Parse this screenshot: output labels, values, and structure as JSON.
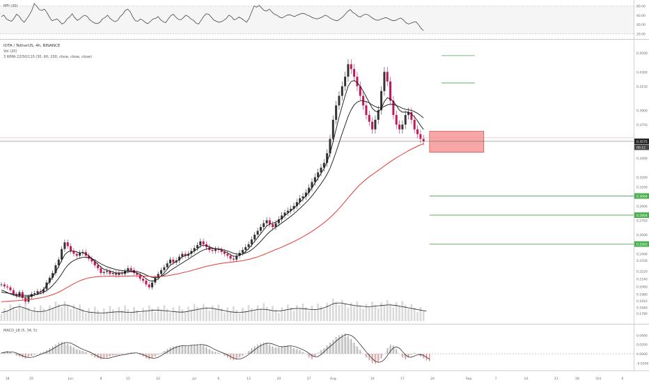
{
  "symbol_line": "IOTA / TetherUS, 4h, BINANCE",
  "vol_line": "Vol (20)",
  "wma_line": "3 WMA 22/50/110 (30, 60, 200, close, close, close)",
  "mfi_line": "MFI (30)",
  "macd_line": "MACD_LB (5, 34, 5)",
  "colors": {
    "up": "#333333",
    "down": "#c2185b",
    "wma_fast": "#111111",
    "wma_slow": "#e53935",
    "zone_fill": "#f48a8a",
    "zone_stroke": "#d32f2f",
    "level_line": "#43a047",
    "price_tag": "#222222",
    "green_tag": "#4caf50"
  },
  "current_price_tag": "0.3575",
  "countdown_tag": "00:12",
  "chart_data": [
    {
      "type": "line",
      "panel": "mfi",
      "y_ticks": [
        "80.00",
        "60.00",
        "40.00",
        "20.00"
      ],
      "ylim": [
        15,
        88
      ],
      "values": [
        57,
        60,
        52,
        49,
        47,
        53,
        62,
        58,
        50,
        45,
        52,
        60,
        70,
        85,
        79,
        72,
        70,
        73,
        66,
        56,
        48,
        50,
        52,
        47,
        41,
        44,
        52,
        56,
        63,
        55,
        49,
        52,
        57,
        60,
        57,
        50,
        46,
        43,
        42,
        45,
        52,
        55,
        60,
        53,
        49,
        46,
        49,
        57,
        62,
        70,
        73,
        67,
        56,
        48,
        47,
        52,
        49,
        44,
        42,
        47,
        52,
        53,
        57,
        50,
        46,
        44,
        52,
        59,
        62,
        56,
        51,
        50,
        55,
        60,
        57,
        52,
        49,
        43,
        41,
        49,
        57,
        63,
        62,
        56,
        50,
        47,
        45,
        46,
        49,
        53,
        60,
        57,
        50,
        52,
        56,
        53,
        49,
        45,
        53,
        67,
        80,
        77,
        81,
        75,
        70,
        69,
        73,
        67,
        62,
        60,
        56,
        54,
        57,
        60,
        61,
        59,
        57,
        60,
        62,
        64,
        63,
        60,
        58,
        55,
        53,
        52,
        54,
        56,
        60,
        58,
        54,
        51,
        49,
        48,
        52,
        56,
        62,
        68,
        72,
        66,
        63,
        58,
        56,
        60,
        62,
        61,
        57,
        53,
        50,
        49,
        51,
        53,
        55,
        53,
        50,
        48,
        49,
        52,
        54,
        50,
        44,
        41,
        43,
        45,
        46,
        40,
        32,
        27
      ]
    },
    {
      "type": "candlestick",
      "panel": "price",
      "y_ticks": [
        "0.4500",
        "0.4300",
        "0.4150",
        "0.3900",
        "0.3750",
        "0.3575",
        "0.3400",
        "0.3200",
        "0.3100",
        "0.2900",
        "0.2750",
        "0.2600",
        "0.2500",
        "0.2400",
        "0.2330",
        "0.2220",
        "0.2140",
        "0.2060",
        "0.1980",
        "0.1910",
        "0.1840",
        "0.1780"
      ],
      "level_tags": [
        "0.3004",
        "0.2804",
        "0.2502"
      ],
      "level_values": [
        0.3004,
        0.2804,
        0.2502,
        0.447,
        0.4185
      ],
      "zone": {
        "from_x": 142,
        "to_x": 160,
        "high": 0.368,
        "low": 0.346
      },
      "current_price": 0.3575,
      "x_ticks": [
        {
          "label": "18",
          "x": 2
        },
        {
          "label": "25",
          "x": 10
        },
        {
          "label": "Jun",
          "x": 23
        },
        {
          "label": "8",
          "x": 33
        },
        {
          "label": "15",
          "x": 42
        },
        {
          "label": "22",
          "x": 52
        },
        {
          "label": "Jul",
          "x": 64
        },
        {
          "label": "6",
          "x": 72
        },
        {
          "label": "13",
          "x": 82
        },
        {
          "label": "20",
          "x": 92
        },
        {
          "label": "27",
          "x": 102
        },
        {
          "label": "Aug",
          "x": 110
        },
        {
          "label": "10",
          "x": 123
        },
        {
          "label": "17",
          "x": 133
        },
        {
          "label": "24",
          "x": 143
        },
        {
          "label": "Sep",
          "x": 155
        },
        {
          "label": "7",
          "x": 164
        },
        {
          "label": "14",
          "x": 174
        },
        {
          "label": "21",
          "x": 184
        },
        {
          "label": "28",
          "x": 191
        },
        {
          "label": "Oct",
          "x": 198
        },
        {
          "label": "6",
          "x": 206
        }
      ],
      "close": [
        0.208,
        0.206,
        0.205,
        0.202,
        0.198,
        0.196,
        0.2,
        0.194,
        0.19,
        0.195,
        0.198,
        0.199,
        0.201,
        0.2,
        0.203,
        0.21,
        0.215,
        0.22,
        0.228,
        0.234,
        0.245,
        0.252,
        0.248,
        0.243,
        0.24,
        0.238,
        0.241,
        0.242,
        0.238,
        0.235,
        0.232,
        0.228,
        0.225,
        0.22,
        0.221,
        0.222,
        0.219,
        0.22,
        0.218,
        0.22,
        0.219,
        0.222,
        0.225,
        0.223,
        0.22,
        0.218,
        0.214,
        0.212,
        0.208,
        0.205,
        0.21,
        0.215,
        0.219,
        0.223,
        0.226,
        0.23,
        0.234,
        0.231,
        0.233,
        0.237,
        0.24,
        0.238,
        0.24,
        0.243,
        0.246,
        0.249,
        0.253,
        0.25,
        0.247,
        0.244,
        0.243,
        0.245,
        0.244,
        0.242,
        0.24,
        0.238,
        0.235,
        0.234,
        0.238,
        0.241,
        0.244,
        0.247,
        0.25,
        0.255,
        0.26,
        0.264,
        0.268,
        0.272,
        0.275,
        0.271,
        0.268,
        0.272,
        0.276,
        0.28,
        0.283,
        0.285,
        0.287,
        0.29,
        0.294,
        0.298,
        0.3,
        0.304,
        0.309,
        0.315,
        0.32,
        0.325,
        0.33,
        0.335,
        0.345,
        0.36,
        0.38,
        0.395,
        0.405,
        0.415,
        0.425,
        0.438,
        0.433,
        0.425,
        0.415,
        0.405,
        0.395,
        0.385,
        0.378,
        0.37,
        0.38,
        0.39,
        0.41,
        0.43,
        0.42,
        0.4,
        0.385,
        0.375,
        0.37,
        0.375,
        0.385,
        0.388,
        0.38,
        0.37,
        0.365,
        0.36,
        0.3575
      ]
    },
    {
      "type": "line",
      "panel": "wma_fast",
      "name": "WMA 30",
      "values": [
        0.202,
        0.201,
        0.1995,
        0.198,
        0.197,
        0.196,
        0.1955,
        0.195,
        0.195,
        0.1955,
        0.196,
        0.197,
        0.1985,
        0.2,
        0.203,
        0.207,
        0.211,
        0.216,
        0.221,
        0.227,
        0.233,
        0.239,
        0.242,
        0.243,
        0.243,
        0.242,
        0.241,
        0.241,
        0.24,
        0.238,
        0.235,
        0.232,
        0.229,
        0.226,
        0.224,
        0.223,
        0.222,
        0.221,
        0.22,
        0.22,
        0.22,
        0.2205,
        0.221,
        0.2215,
        0.221,
        0.22,
        0.2185,
        0.2165,
        0.214,
        0.212,
        0.2115,
        0.212,
        0.214,
        0.217,
        0.22,
        0.224,
        0.228,
        0.23,
        0.232,
        0.234,
        0.237,
        0.238,
        0.2395,
        0.241,
        0.243,
        0.245,
        0.248,
        0.249,
        0.2485,
        0.2475,
        0.246,
        0.2455,
        0.245,
        0.244,
        0.2425,
        0.241,
        0.239,
        0.2375,
        0.2375,
        0.2385,
        0.24,
        0.2425,
        0.2455,
        0.249,
        0.253,
        0.257,
        0.261,
        0.265,
        0.269,
        0.271,
        0.272,
        0.273,
        0.275,
        0.277,
        0.28,
        0.2825,
        0.285,
        0.2875,
        0.2905,
        0.294,
        0.297,
        0.3005,
        0.3045,
        0.309,
        0.314,
        0.319,
        0.324,
        0.329,
        0.336,
        0.345,
        0.357,
        0.37,
        0.383,
        0.394,
        0.405,
        0.415,
        0.42,
        0.421,
        0.419,
        0.415,
        0.41,
        0.404,
        0.398,
        0.392,
        0.389,
        0.388,
        0.392,
        0.399,
        0.403,
        0.402,
        0.399,
        0.395,
        0.39,
        0.388,
        0.388,
        0.388,
        0.386,
        0.383,
        0.379,
        0.374,
        0.37
      ]
    },
    {
      "type": "line",
      "panel": "wma_mid",
      "name": "WMA 60",
      "values": [
        0.2,
        0.1995,
        0.199,
        0.1985,
        0.198,
        0.1975,
        0.197,
        0.1968,
        0.1966,
        0.1966,
        0.1968,
        0.1972,
        0.1978,
        0.1985,
        0.1998,
        0.2015,
        0.204,
        0.207,
        0.2105,
        0.2145,
        0.219,
        0.224,
        0.228,
        0.231,
        0.233,
        0.2345,
        0.2355,
        0.2365,
        0.2365,
        0.236,
        0.235,
        0.2335,
        0.2315,
        0.2295,
        0.228,
        0.2265,
        0.2255,
        0.2245,
        0.2235,
        0.223,
        0.2225,
        0.2222,
        0.2222,
        0.2222,
        0.222,
        0.2215,
        0.2205,
        0.2195,
        0.218,
        0.2165,
        0.2155,
        0.215,
        0.2155,
        0.2165,
        0.218,
        0.22,
        0.2225,
        0.2245,
        0.2265,
        0.2285,
        0.2305,
        0.2325,
        0.2345,
        0.2365,
        0.2385,
        0.2405,
        0.2425,
        0.244,
        0.245,
        0.2455,
        0.2455,
        0.2455,
        0.2452,
        0.2448,
        0.244,
        0.243,
        0.2418,
        0.2405,
        0.2398,
        0.2395,
        0.2398,
        0.2408,
        0.2422,
        0.2442,
        0.2468,
        0.2498,
        0.253,
        0.2565,
        0.26,
        0.263,
        0.2655,
        0.2678,
        0.27,
        0.2722,
        0.2745,
        0.2768,
        0.2792,
        0.2818,
        0.2845,
        0.2875,
        0.2905,
        0.2935,
        0.2968,
        0.3005,
        0.3045,
        0.3088,
        0.3132,
        0.3178,
        0.323,
        0.3295,
        0.3375,
        0.3465,
        0.356,
        0.3655,
        0.3745,
        0.3835,
        0.3905,
        0.3955,
        0.3985,
        0.3998,
        0.3998,
        0.399,
        0.3975,
        0.3955,
        0.3938,
        0.3925,
        0.3925,
        0.394,
        0.3955,
        0.3962,
        0.396,
        0.395,
        0.3935,
        0.392,
        0.391,
        0.3905,
        0.3898,
        0.3885,
        0.3868,
        0.3845,
        0.382
      ]
    },
    {
      "type": "line",
      "panel": "wma_slow",
      "name": "WMA 200",
      "values": [
        0.19,
        0.1902,
        0.1904,
        0.1906,
        0.1908,
        0.191,
        0.1913,
        0.1916,
        0.1919,
        0.1922,
        0.1926,
        0.193,
        0.1935,
        0.194,
        0.1947,
        0.1955,
        0.1964,
        0.1974,
        0.1986,
        0.2,
        0.2016,
        0.2034,
        0.2052,
        0.207,
        0.2088,
        0.2104,
        0.2118,
        0.213,
        0.214,
        0.2148,
        0.2154,
        0.2158,
        0.2161,
        0.2163,
        0.2164,
        0.2165,
        0.2166,
        0.2166,
        0.2166,
        0.2166,
        0.2166,
        0.2166,
        0.2167,
        0.2168,
        0.2169,
        0.2169,
        0.2169,
        0.2168,
        0.2166,
        0.2164,
        0.2162,
        0.2161,
        0.2162,
        0.2164,
        0.2167,
        0.2171,
        0.2176,
        0.2182,
        0.2188,
        0.2195,
        0.2202,
        0.2209,
        0.2217,
        0.2225,
        0.2234,
        0.2243,
        0.2252,
        0.2261,
        0.2269,
        0.2276,
        0.2283,
        0.2289,
        0.2295,
        0.23,
        0.2305,
        0.2309,
        0.2313,
        0.2316,
        0.232,
        0.2324,
        0.2329,
        0.2335,
        0.2342,
        0.235,
        0.2359,
        0.2369,
        0.238,
        0.2392,
        0.2405,
        0.2418,
        0.2431,
        0.2444,
        0.2457,
        0.247,
        0.2484,
        0.2498,
        0.2513,
        0.2528,
        0.2544,
        0.2561,
        0.2578,
        0.2596,
        0.2615,
        0.2635,
        0.2656,
        0.2678,
        0.2701,
        0.2725,
        0.275,
        0.2778,
        0.2808,
        0.284,
        0.2874,
        0.291,
        0.2947,
        0.2985,
        0.3022,
        0.3058,
        0.3092,
        0.3124,
        0.3153,
        0.318,
        0.3205,
        0.3228,
        0.325,
        0.3272,
        0.3294,
        0.3317,
        0.334,
        0.3362,
        0.3383,
        0.3403,
        0.3422,
        0.344,
        0.3458,
        0.3476,
        0.3493,
        0.3509,
        0.3524,
        0.3538,
        0.355
      ]
    },
    {
      "type": "line",
      "panel": "vol_ma",
      "name": "Vol MA 20",
      "values": [
        30,
        32,
        35,
        40,
        45,
        48,
        50,
        48,
        44,
        40,
        36,
        34,
        33,
        33,
        34,
        36,
        40,
        44,
        48,
        52,
        55,
        56,
        55,
        52,
        48,
        44,
        40,
        36,
        33,
        31,
        30,
        29,
        28,
        28,
        28,
        29,
        30,
        31,
        32,
        32,
        32,
        31,
        30,
        30,
        31,
        32,
        33,
        34,
        35,
        36,
        37,
        38,
        38,
        37,
        36,
        35,
        34,
        33,
        32,
        31,
        31,
        32,
        34,
        36,
        38,
        40,
        42,
        44,
        45,
        45,
        44,
        42,
        40,
        38,
        36,
        34,
        32,
        31,
        30,
        30,
        31,
        32,
        34,
        36,
        38,
        40,
        41,
        41,
        40,
        38,
        36,
        35,
        35,
        36,
        38,
        40,
        42,
        43,
        44,
        44,
        43,
        42,
        41,
        40,
        40,
        41,
        43,
        46,
        50,
        55,
        60,
        62,
        63,
        62,
        60,
        58,
        56,
        54,
        53,
        52,
        51,
        50,
        50,
        51,
        52,
        53,
        54,
        55,
        56,
        56,
        55,
        54,
        52,
        50,
        48,
        46,
        44,
        42,
        40,
        38,
        36,
        35
      ]
    },
    {
      "type": "bar",
      "panel": "macd",
      "y_ticks": [
        "0.0400",
        "0.0200",
        "0.0000",
        "-0.0200"
      ],
      "ylim": [
        -0.03,
        0.045
      ],
      "values": [
        0.002,
        0.004,
        0.006,
        0.004,
        0.0,
        -0.004,
        -0.006,
        -0.008,
        -0.01,
        -0.008,
        -0.005,
        -0.002,
        0.0,
        0.002,
        0.004,
        0.008,
        0.012,
        0.016,
        0.02,
        0.024,
        0.026,
        0.025,
        0.022,
        0.018,
        0.014,
        0.01,
        0.008,
        0.006,
        0.004,
        0.0,
        -0.004,
        -0.008,
        -0.01,
        -0.012,
        -0.01,
        -0.008,
        -0.006,
        -0.004,
        -0.003,
        -0.002,
        -0.001,
        0.0,
        0.002,
        0.003,
        0.002,
        0.0,
        -0.003,
        -0.006,
        -0.01,
        -0.012,
        -0.01,
        -0.006,
        -0.002,
        0.002,
        0.006,
        0.01,
        0.014,
        0.016,
        0.017,
        0.018,
        0.018,
        0.017,
        0.018,
        0.019,
        0.02,
        0.02,
        0.02,
        0.018,
        0.014,
        0.01,
        0.006,
        0.004,
        0.002,
        0.0,
        -0.004,
        -0.008,
        -0.012,
        -0.014,
        -0.012,
        -0.008,
        -0.004,
        0.0,
        0.006,
        0.012,
        0.016,
        0.02,
        0.022,
        0.024,
        0.024,
        0.02,
        0.016,
        0.014,
        0.014,
        0.016,
        0.018,
        0.018,
        0.016,
        0.012,
        0.01,
        0.008,
        0.004,
        0.0,
        -0.008,
        -0.012,
        -0.006,
        0.002,
        0.008,
        0.012,
        0.018,
        0.024,
        0.03,
        0.036,
        0.04,
        0.042,
        0.044,
        0.04,
        0.032,
        0.024,
        0.016,
        0.008,
        0.0,
        -0.008,
        -0.014,
        -0.02,
        -0.022,
        -0.018,
        -0.01,
        0.0,
        0.012,
        0.02,
        0.018,
        0.01,
        0.0,
        -0.008,
        -0.012,
        -0.008,
        -0.002,
        0.002,
        0.0,
        -0.006,
        -0.01,
        -0.014,
        -0.016
      ]
    }
  ]
}
